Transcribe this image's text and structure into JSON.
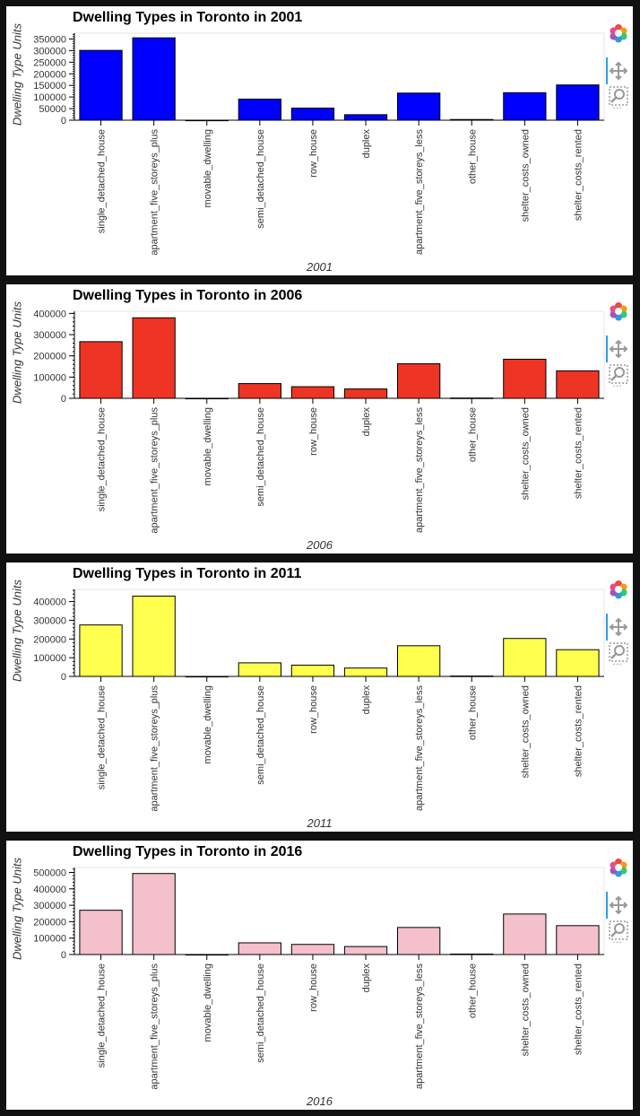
{
  "axis_label_y": "Dwelling Type Units",
  "toolbar_more": "…",
  "chart_data": [
    {
      "type": "bar",
      "title": "Dwelling Types in Toronto in 2001",
      "xlabel": "2001",
      "ylabel": "Dwelling Type Units",
      "color": "#0000ff",
      "categories": [
        "single_detached_house",
        "apartment_five_storeys_plus",
        "movable_dwelling",
        "semi_detached_house",
        "row_house",
        "duplex",
        "apartment_five_storeys_less",
        "other_house",
        "shelter_costs_owned",
        "shelter_costs_rented"
      ],
      "values": [
        300930,
        355015,
        75,
        90995,
        52355,
        23785,
        116900,
        3040,
        118563,
        152031
      ],
      "ylim": [
        0,
        375000
      ],
      "yticks": [
        0,
        50000,
        100000,
        150000,
        200000,
        250000,
        300000,
        350000
      ],
      "ytick_labels": [
        "0",
        "50000",
        "100000",
        "150000",
        "200000",
        "250000",
        "300000",
        "350000"
      ]
    },
    {
      "type": "bar",
      "title": "Dwelling Types in Toronto in 2006",
      "xlabel": "2006",
      "ylabel": "Dwelling Type Units",
      "color": "#ee3424",
      "categories": [
        "single_detached_house",
        "apartment_five_storeys_plus",
        "movable_dwelling",
        "semi_detached_house",
        "row_house",
        "duplex",
        "apartment_five_storeys_less",
        "other_house",
        "shelter_costs_owned",
        "shelter_costs_rented"
      ],
      "values": [
        266860,
        379400,
        165,
        69430,
        54690,
        44095,
        162850,
        1335,
        184152,
        129558
      ],
      "ylim": [
        0,
        410000
      ],
      "yticks": [
        0,
        100000,
        200000,
        300000,
        400000
      ],
      "ytick_labels": [
        "0",
        "100000",
        "200000",
        "300000",
        "400000"
      ]
    },
    {
      "type": "bar",
      "title": "Dwelling Types in Toronto in 2011",
      "xlabel": "2011",
      "ylabel": "Dwelling Type Units",
      "color": "#ffff4d",
      "categories": [
        "single_detached_house",
        "apartment_five_storeys_plus",
        "movable_dwelling",
        "semi_detached_house",
        "row_house",
        "duplex",
        "apartment_five_storeys_less",
        "other_house",
        "shelter_costs_owned",
        "shelter_costs_rented"
      ],
      "values": [
        274940,
        429220,
        100,
        72480,
        60355,
        44750,
        163895,
        2165,
        202750,
        142771
      ],
      "ylim": [
        0,
        465000
      ],
      "yticks": [
        0,
        100000,
        200000,
        300000,
        400000
      ],
      "ytick_labels": [
        "0",
        "100000",
        "200000",
        "300000",
        "400000"
      ]
    },
    {
      "type": "bar",
      "title": "Dwelling Types in Toronto in 2016",
      "xlabel": "2016",
      "ylabel": "Dwelling Type Units",
      "color": "#f4c0cb",
      "categories": [
        "single_detached_house",
        "apartment_five_storeys_plus",
        "movable_dwelling",
        "semi_detached_house",
        "row_house",
        "duplex",
        "apartment_five_storeys_less",
        "other_house",
        "shelter_costs_owned",
        "shelter_costs_rented"
      ],
      "values": [
        269680,
        493270,
        95,
        71200,
        61565,
        48585,
        164820,
        2845,
        246584,
        175885
      ],
      "ylim": [
        0,
        530000
      ],
      "yticks": [
        0,
        100000,
        200000,
        300000,
        400000,
        500000
      ],
      "ytick_labels": [
        "0",
        "100000",
        "200000",
        "300000",
        "400000",
        "500000"
      ]
    }
  ]
}
